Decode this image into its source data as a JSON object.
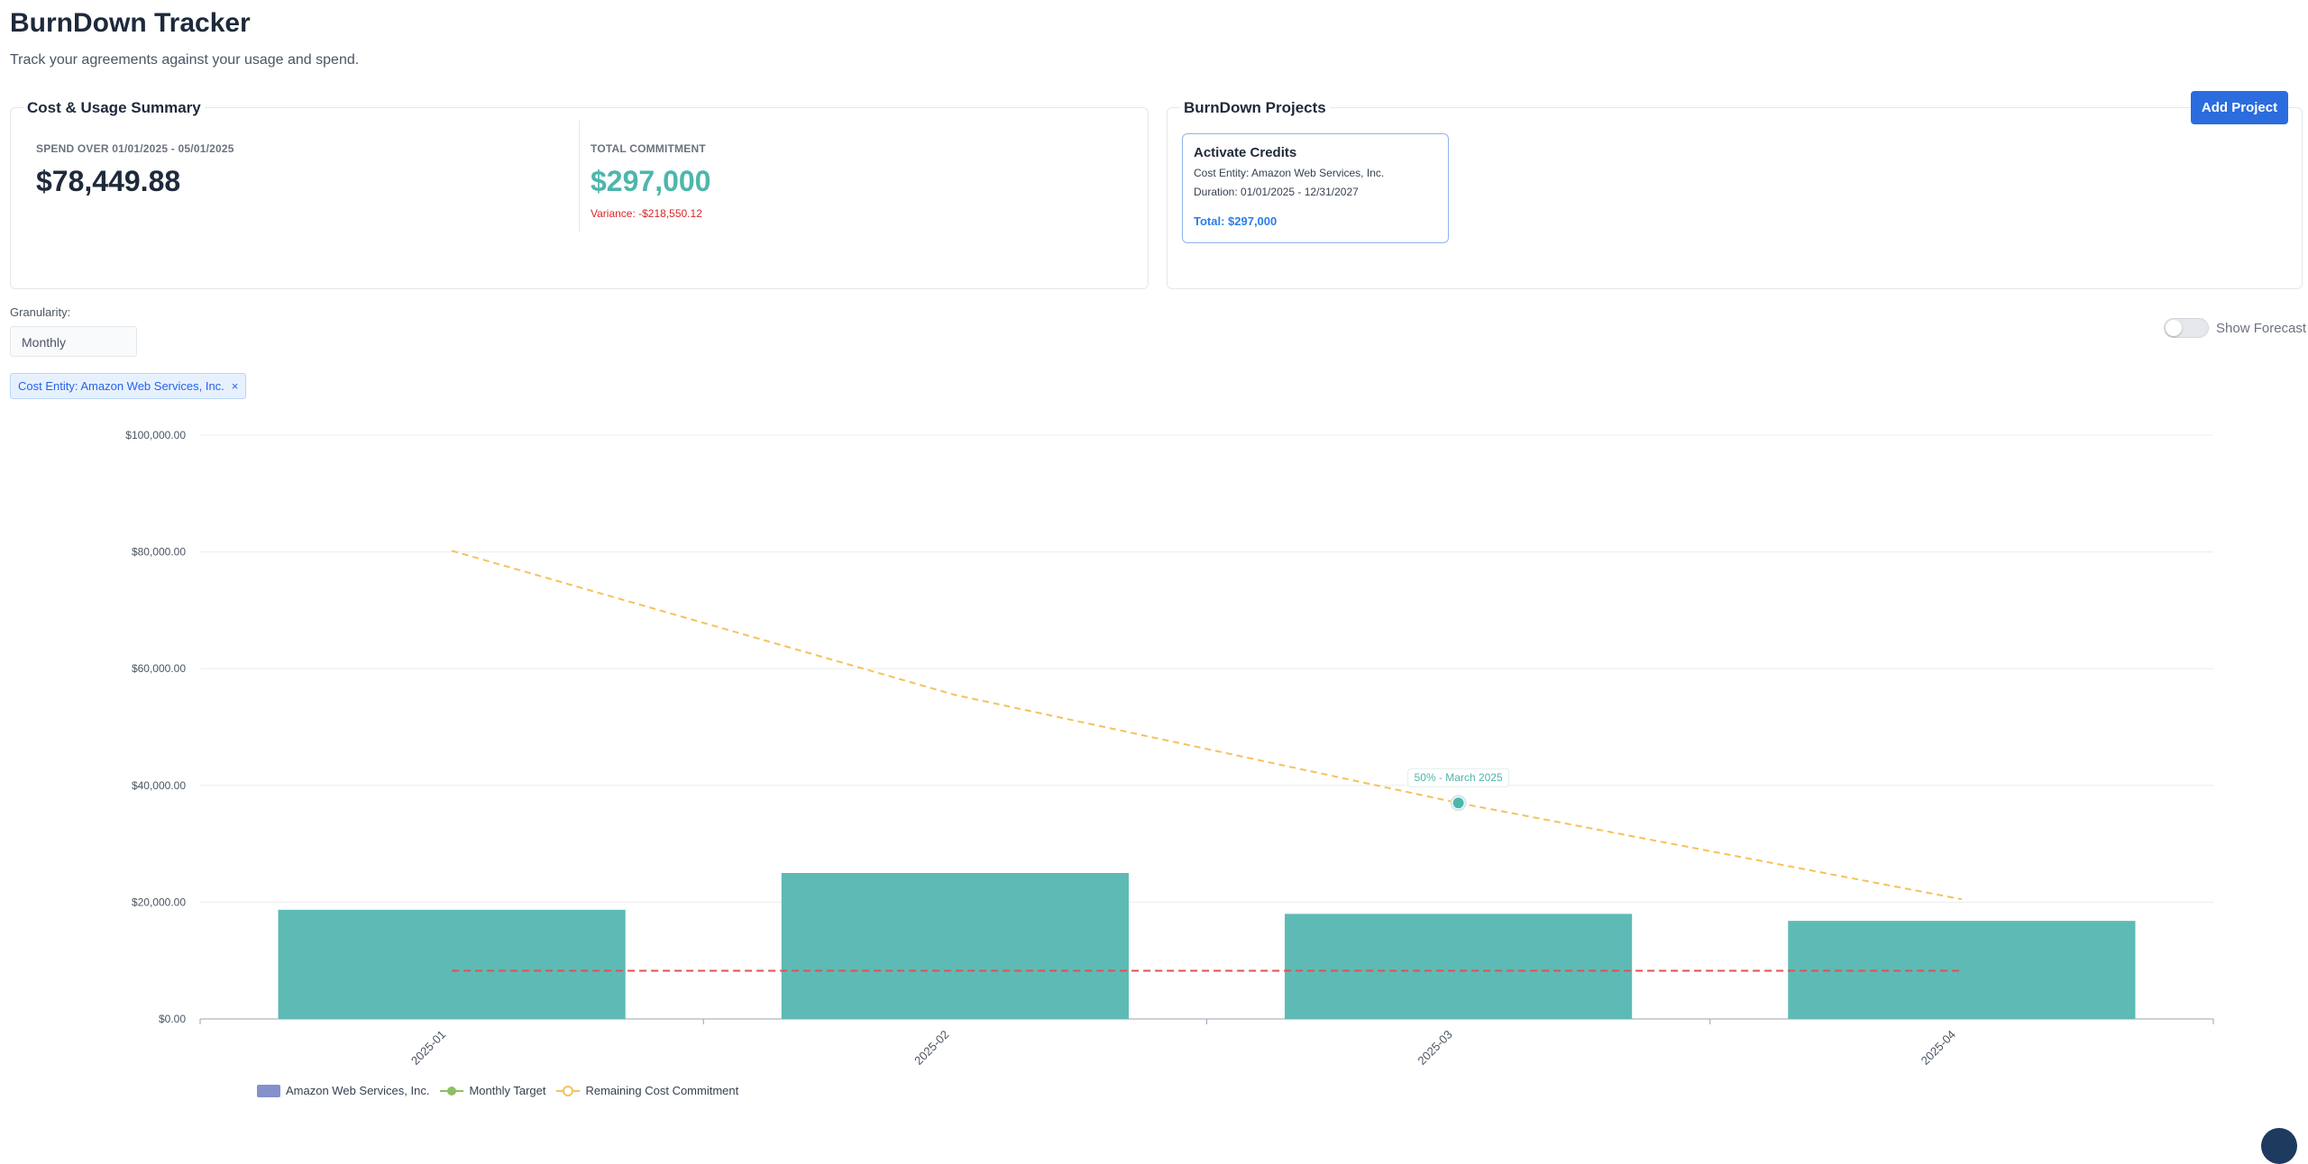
{
  "header": {
    "title": "BurnDown Tracker",
    "subtitle": "Track your agreements against your usage and spend."
  },
  "summary": {
    "title": "Cost & Usage Summary",
    "spend_label": "SPEND OVER 01/01/2025 - 05/01/2025",
    "spend_value": "$78,449.88",
    "commitment_label": "TOTAL COMMITMENT",
    "commitment_value": "$297,000",
    "variance": "Variance: -$218,550.12"
  },
  "projects": {
    "title": "BurnDown Projects",
    "add_button": "Add Project",
    "items": [
      {
        "name": "Activate Credits",
        "entity": "Cost Entity: Amazon Web Services, Inc.",
        "duration": "Duration: 01/01/2025 - 12/31/2027",
        "total": "Total: $297,000"
      }
    ]
  },
  "controls": {
    "granularity_label": "Granularity:",
    "granularity_value": "Monthly",
    "forecast_label": "Show Forecast",
    "forecast_enabled": false,
    "filter_chip": "Cost Entity: Amazon Web Services, Inc.",
    "filter_close": "×"
  },
  "colors": {
    "bar": "#5ebab5",
    "target_line": "#e05252",
    "remaining_line": "#f5c15c",
    "marker": "#4db6ac",
    "accent": "#2b6cde"
  },
  "chart_data": {
    "type": "bar",
    "categories": [
      "2025-01",
      "2025-02",
      "2025-03",
      "2025-04"
    ],
    "series": [
      {
        "name": "Amazon Web Services, Inc.",
        "type": "bar",
        "values": [
          18700,
          25000,
          18000,
          16800
        ]
      },
      {
        "name": "Monthly Target",
        "type": "line",
        "values": [
          8250,
          8250,
          8250,
          8250
        ]
      },
      {
        "name": "Remaining Cost Commitment",
        "type": "line",
        "values": [
          80200,
          55500,
          37000,
          20500
        ]
      }
    ],
    "ylim": [
      0,
      100000
    ],
    "yticks": [
      "$100,000.00",
      "$80,000.00",
      "$60,000.00",
      "$40,000.00",
      "$20,000.00",
      "$0.00"
    ],
    "ytick_values": [
      100000,
      80000,
      60000,
      40000,
      20000,
      0
    ],
    "annotation": {
      "text": "50% - March 2025",
      "category_index": 2,
      "value": 37000
    },
    "grid": true,
    "legend": "bottom-left",
    "legend_marker_names": [
      "Amazon Web Services, Inc.",
      "Monthly Target",
      "Remaining Cost Commitment"
    ]
  }
}
